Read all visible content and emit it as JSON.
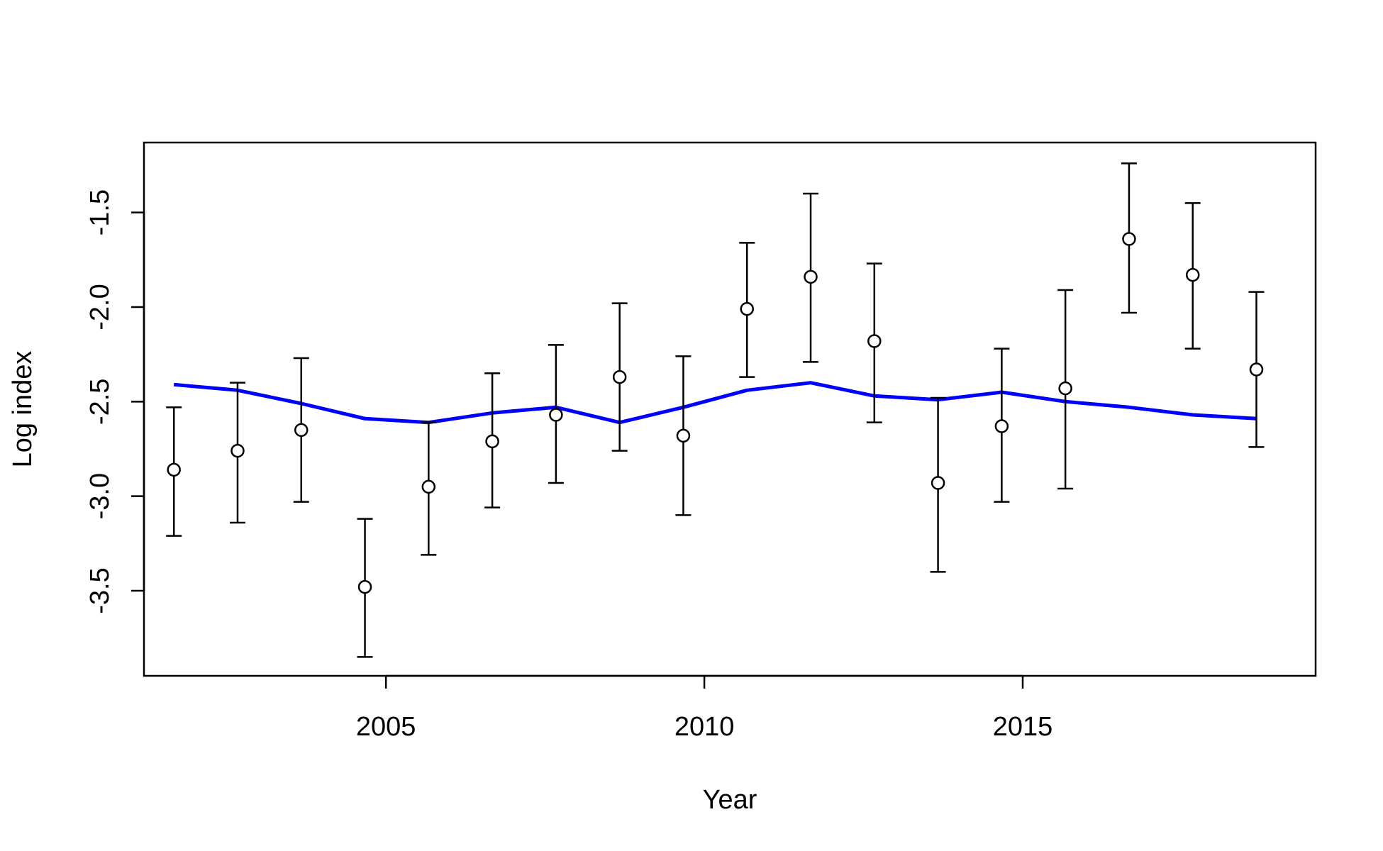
{
  "chart_data": {
    "type": "scatter",
    "title": "",
    "xlabel": "Year",
    "ylabel": "Log index",
    "xlim": [
      2001.2,
      2019.6
    ],
    "ylim": [
      -3.95,
      -1.13
    ],
    "xticks": [
      2005,
      2010,
      2015
    ],
    "yticks": [
      -3.5,
      -3.0,
      -2.5,
      -2.0,
      -1.5
    ],
    "grid": false,
    "legend": "none",
    "colors": {
      "observed": "#000000",
      "fit": "#0000ff"
    },
    "series": [
      {
        "kind": "points-with-error-bars",
        "x": [
          2001.67,
          2002.67,
          2003.67,
          2004.67,
          2005.67,
          2006.67,
          2007.67,
          2008.67,
          2009.67,
          2010.67,
          2011.67,
          2012.67,
          2013.67,
          2014.67,
          2015.67,
          2016.67,
          2017.67,
          2018.67
        ],
        "y": [
          -2.86,
          -2.76,
          -2.65,
          -3.48,
          -2.95,
          -2.71,
          -2.57,
          -2.37,
          -2.68,
          -2.01,
          -1.84,
          -2.18,
          -2.93,
          -2.63,
          -2.43,
          -1.64,
          -1.83,
          -2.33
        ],
        "lower": [
          -3.21,
          -3.14,
          -3.03,
          -3.85,
          -3.31,
          -3.06,
          -2.93,
          -2.76,
          -3.1,
          -2.37,
          -2.29,
          -2.61,
          -3.4,
          -3.03,
          -2.96,
          -2.03,
          -2.22,
          -2.74
        ],
        "upper": [
          -2.53,
          -2.4,
          -2.27,
          -3.12,
          -2.61,
          -2.35,
          -2.2,
          -1.98,
          -2.26,
          -1.66,
          -1.4,
          -1.77,
          -2.48,
          -2.22,
          -1.91,
          -1.24,
          -1.45,
          -1.92
        ]
      },
      {
        "kind": "line",
        "x": [
          2001.67,
          2002.67,
          2003.67,
          2004.67,
          2005.67,
          2006.67,
          2007.67,
          2008.67,
          2009.67,
          2010.67,
          2011.67,
          2012.67,
          2013.67,
          2014.67,
          2015.67,
          2016.67,
          2017.67,
          2018.67
        ],
        "y": [
          -2.41,
          -2.44,
          -2.51,
          -2.59,
          -2.61,
          -2.56,
          -2.53,
          -2.61,
          -2.53,
          -2.44,
          -2.4,
          -2.47,
          -2.49,
          -2.45,
          -2.5,
          -2.53,
          -2.57,
          -2.59
        ]
      }
    ]
  }
}
